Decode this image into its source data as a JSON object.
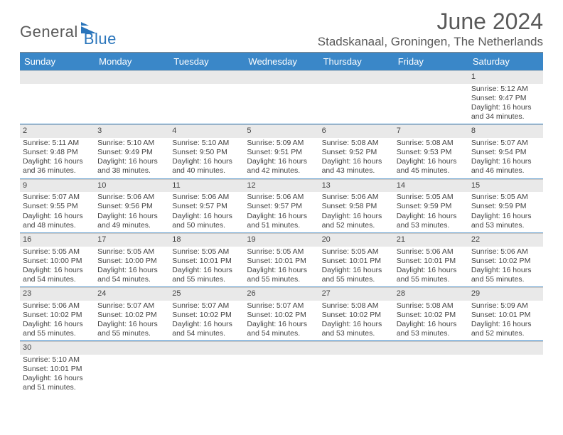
{
  "colors": {
    "header_bg": "#3a87c8",
    "header_text": "#ffffff",
    "rule_dark": "#3a87c8",
    "rule_mid": "#6aa3d1",
    "daynum_bg": "#e9e9e9",
    "body_text": "#444444",
    "logo_gray": "#5a5a5a",
    "logo_blue": "#2a75bb"
  },
  "logo": {
    "part1": "General",
    "part2": "Blue"
  },
  "title": "June 2024",
  "location": "Stadskanaal, Groningen, The Netherlands",
  "day_headers": [
    "Sunday",
    "Monday",
    "Tuesday",
    "Wednesday",
    "Thursday",
    "Friday",
    "Saturday"
  ],
  "weeks": [
    [
      null,
      null,
      null,
      null,
      null,
      null,
      {
        "n": "1",
        "sr": "Sunrise: 5:12 AM",
        "ss": "Sunset: 9:47 PM",
        "dl": "Daylight: 16 hours and 34 minutes."
      }
    ],
    [
      {
        "n": "2",
        "sr": "Sunrise: 5:11 AM",
        "ss": "Sunset: 9:48 PM",
        "dl": "Daylight: 16 hours and 36 minutes."
      },
      {
        "n": "3",
        "sr": "Sunrise: 5:10 AM",
        "ss": "Sunset: 9:49 PM",
        "dl": "Daylight: 16 hours and 38 minutes."
      },
      {
        "n": "4",
        "sr": "Sunrise: 5:10 AM",
        "ss": "Sunset: 9:50 PM",
        "dl": "Daylight: 16 hours and 40 minutes."
      },
      {
        "n": "5",
        "sr": "Sunrise: 5:09 AM",
        "ss": "Sunset: 9:51 PM",
        "dl": "Daylight: 16 hours and 42 minutes."
      },
      {
        "n": "6",
        "sr": "Sunrise: 5:08 AM",
        "ss": "Sunset: 9:52 PM",
        "dl": "Daylight: 16 hours and 43 minutes."
      },
      {
        "n": "7",
        "sr": "Sunrise: 5:08 AM",
        "ss": "Sunset: 9:53 PM",
        "dl": "Daylight: 16 hours and 45 minutes."
      },
      {
        "n": "8",
        "sr": "Sunrise: 5:07 AM",
        "ss": "Sunset: 9:54 PM",
        "dl": "Daylight: 16 hours and 46 minutes."
      }
    ],
    [
      {
        "n": "9",
        "sr": "Sunrise: 5:07 AM",
        "ss": "Sunset: 9:55 PM",
        "dl": "Daylight: 16 hours and 48 minutes."
      },
      {
        "n": "10",
        "sr": "Sunrise: 5:06 AM",
        "ss": "Sunset: 9:56 PM",
        "dl": "Daylight: 16 hours and 49 minutes."
      },
      {
        "n": "11",
        "sr": "Sunrise: 5:06 AM",
        "ss": "Sunset: 9:57 PM",
        "dl": "Daylight: 16 hours and 50 minutes."
      },
      {
        "n": "12",
        "sr": "Sunrise: 5:06 AM",
        "ss": "Sunset: 9:57 PM",
        "dl": "Daylight: 16 hours and 51 minutes."
      },
      {
        "n": "13",
        "sr": "Sunrise: 5:06 AM",
        "ss": "Sunset: 9:58 PM",
        "dl": "Daylight: 16 hours and 52 minutes."
      },
      {
        "n": "14",
        "sr": "Sunrise: 5:05 AM",
        "ss": "Sunset: 9:59 PM",
        "dl": "Daylight: 16 hours and 53 minutes."
      },
      {
        "n": "15",
        "sr": "Sunrise: 5:05 AM",
        "ss": "Sunset: 9:59 PM",
        "dl": "Daylight: 16 hours and 53 minutes."
      }
    ],
    [
      {
        "n": "16",
        "sr": "Sunrise: 5:05 AM",
        "ss": "Sunset: 10:00 PM",
        "dl": "Daylight: 16 hours and 54 minutes."
      },
      {
        "n": "17",
        "sr": "Sunrise: 5:05 AM",
        "ss": "Sunset: 10:00 PM",
        "dl": "Daylight: 16 hours and 54 minutes."
      },
      {
        "n": "18",
        "sr": "Sunrise: 5:05 AM",
        "ss": "Sunset: 10:01 PM",
        "dl": "Daylight: 16 hours and 55 minutes."
      },
      {
        "n": "19",
        "sr": "Sunrise: 5:05 AM",
        "ss": "Sunset: 10:01 PM",
        "dl": "Daylight: 16 hours and 55 minutes."
      },
      {
        "n": "20",
        "sr": "Sunrise: 5:05 AM",
        "ss": "Sunset: 10:01 PM",
        "dl": "Daylight: 16 hours and 55 minutes."
      },
      {
        "n": "21",
        "sr": "Sunrise: 5:06 AM",
        "ss": "Sunset: 10:01 PM",
        "dl": "Daylight: 16 hours and 55 minutes."
      },
      {
        "n": "22",
        "sr": "Sunrise: 5:06 AM",
        "ss": "Sunset: 10:02 PM",
        "dl": "Daylight: 16 hours and 55 minutes."
      }
    ],
    [
      {
        "n": "23",
        "sr": "Sunrise: 5:06 AM",
        "ss": "Sunset: 10:02 PM",
        "dl": "Daylight: 16 hours and 55 minutes."
      },
      {
        "n": "24",
        "sr": "Sunrise: 5:07 AM",
        "ss": "Sunset: 10:02 PM",
        "dl": "Daylight: 16 hours and 55 minutes."
      },
      {
        "n": "25",
        "sr": "Sunrise: 5:07 AM",
        "ss": "Sunset: 10:02 PM",
        "dl": "Daylight: 16 hours and 54 minutes."
      },
      {
        "n": "26",
        "sr": "Sunrise: 5:07 AM",
        "ss": "Sunset: 10:02 PM",
        "dl": "Daylight: 16 hours and 54 minutes."
      },
      {
        "n": "27",
        "sr": "Sunrise: 5:08 AM",
        "ss": "Sunset: 10:02 PM",
        "dl": "Daylight: 16 hours and 53 minutes."
      },
      {
        "n": "28",
        "sr": "Sunrise: 5:08 AM",
        "ss": "Sunset: 10:02 PM",
        "dl": "Daylight: 16 hours and 53 minutes."
      },
      {
        "n": "29",
        "sr": "Sunrise: 5:09 AM",
        "ss": "Sunset: 10:01 PM",
        "dl": "Daylight: 16 hours and 52 minutes."
      }
    ],
    [
      {
        "n": "30",
        "sr": "Sunrise: 5:10 AM",
        "ss": "Sunset: 10:01 PM",
        "dl": "Daylight: 16 hours and 51 minutes."
      },
      null,
      null,
      null,
      null,
      null,
      null
    ]
  ]
}
